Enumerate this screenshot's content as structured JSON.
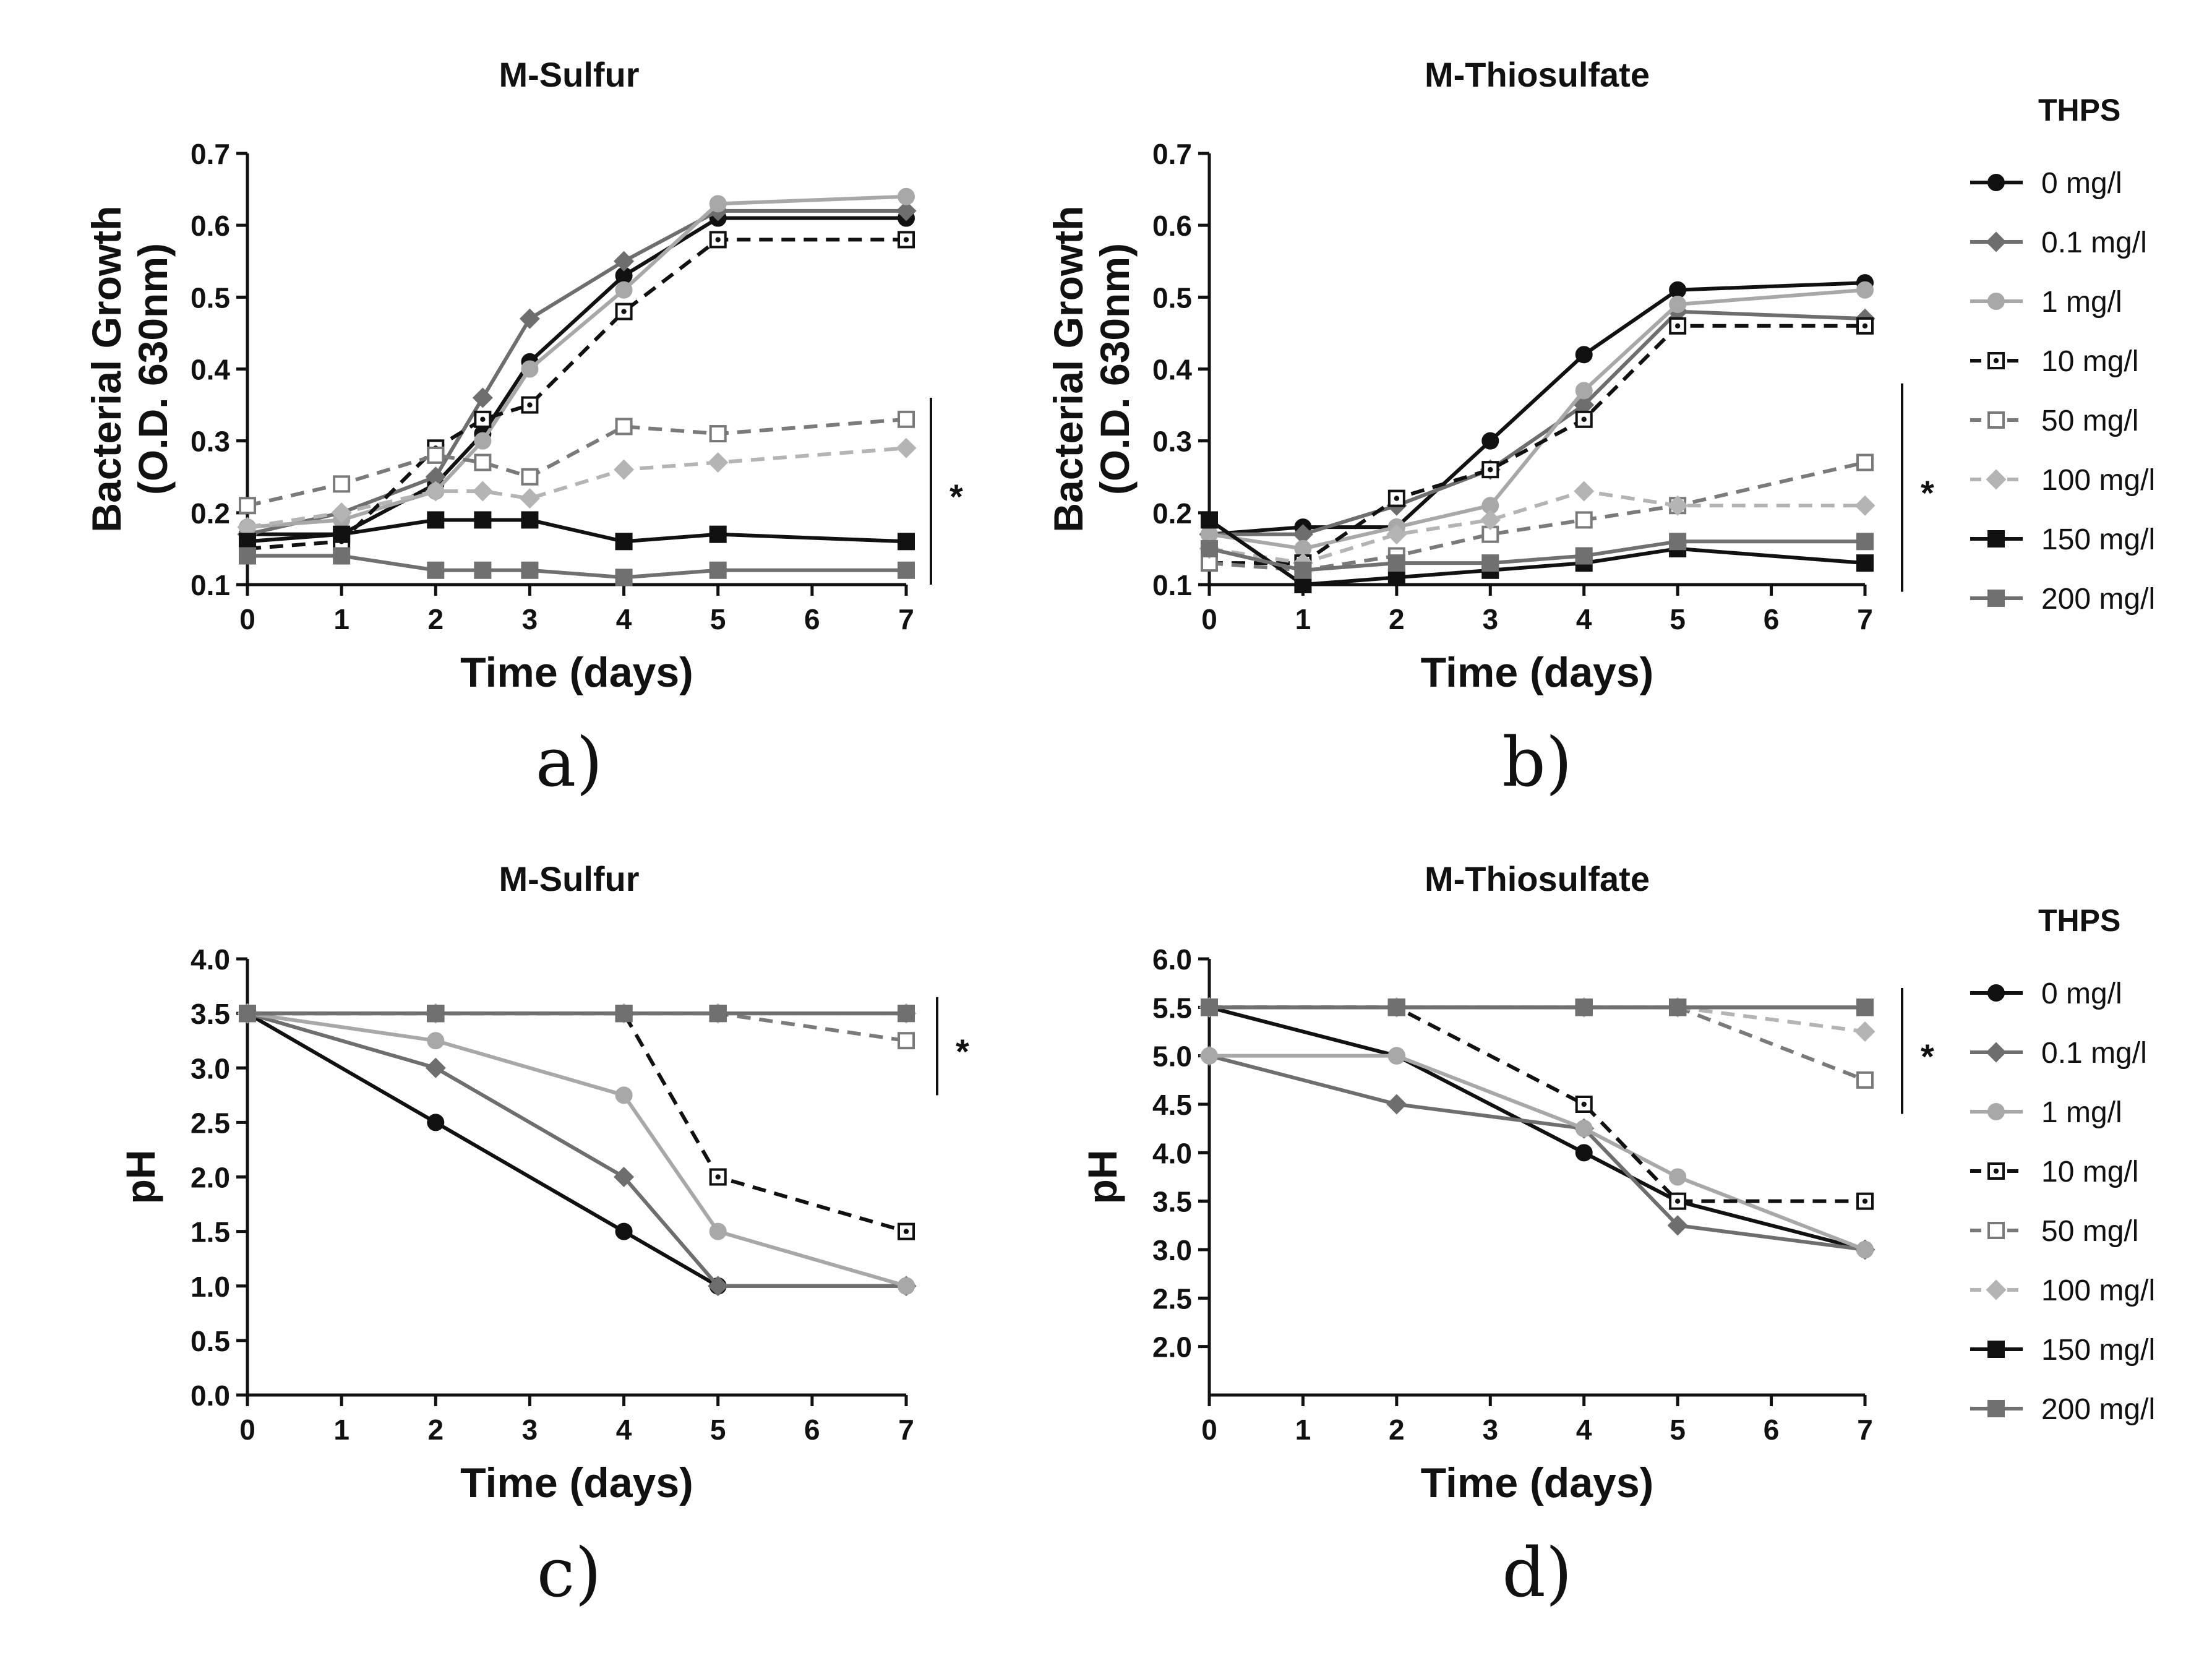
{
  "legend_title": "THPS",
  "series_styles": [
    {
      "name": "0 mg/l",
      "color": "#111111",
      "dash": "solid",
      "marker": "circle",
      "filled": true
    },
    {
      "name": "0.1 mg/l",
      "color": "#6e6e6e",
      "dash": "solid",
      "marker": "diamond",
      "filled": true
    },
    {
      "name": "1 mg/l",
      "color": "#a8a8a8",
      "dash": "solid",
      "marker": "circle",
      "filled": true
    },
    {
      "name": "10 mg/l",
      "color": "#111111",
      "dash": "dashed",
      "marker": "dot-square",
      "filled": false
    },
    {
      "name": "50 mg/l",
      "color": "#7a7a7a",
      "dash": "dashed",
      "marker": "open-square",
      "filled": false
    },
    {
      "name": "100 mg/l",
      "color": "#b4b4b4",
      "dash": "dashed",
      "marker": "diamond",
      "filled": true
    },
    {
      "name": "150 mg/l",
      "color": "#111111",
      "dash": "solid",
      "marker": "square",
      "filled": true
    },
    {
      "name": "200 mg/l",
      "color": "#707070",
      "dash": "solid",
      "marker": "square",
      "filled": true
    }
  ],
  "chart_data": [
    {
      "panel": "a)",
      "type": "line",
      "title": "M-Sulfur",
      "xlabel": "Time (days)",
      "ylabel": [
        "Bacterial Growth",
        "(O.D. 630nm)"
      ],
      "xlim": [
        0,
        7
      ],
      "ylim": [
        0.1,
        0.7
      ],
      "xticks": [
        "0",
        "1",
        "2",
        "3",
        "4",
        "5",
        "6",
        "7"
      ],
      "yticks": [
        "0.1",
        "0.2",
        "0.3",
        "0.4",
        "0.5",
        "0.6",
        "0.7"
      ],
      "significance": "*",
      "significance_range": [
        0.1,
        0.36
      ],
      "x": [
        0,
        1,
        2,
        2.5,
        3,
        4,
        5,
        7
      ],
      "series": [
        {
          "name": "0 mg/l",
          "values": [
            0.17,
            0.17,
            0.24,
            0.31,
            0.41,
            0.53,
            0.61,
            0.61
          ]
        },
        {
          "name": "0.1 mg/l",
          "values": [
            0.17,
            0.2,
            0.25,
            0.36,
            0.47,
            0.55,
            0.62,
            0.62
          ]
        },
        {
          "name": "1 mg/l",
          "values": [
            0.18,
            0.19,
            0.23,
            0.3,
            0.4,
            0.51,
            0.63,
            0.64
          ]
        },
        {
          "name": "10 mg/l",
          "values": [
            0.15,
            0.16,
            0.29,
            0.33,
            0.35,
            0.48,
            0.58,
            0.58
          ]
        },
        {
          "name": "50 mg/l",
          "values": [
            0.21,
            0.24,
            0.28,
            0.27,
            0.25,
            0.32,
            0.31,
            0.33
          ]
        },
        {
          "name": "100 mg/l",
          "values": [
            0.18,
            0.2,
            0.23,
            0.23,
            0.22,
            0.26,
            0.27,
            0.29
          ]
        },
        {
          "name": "150 mg/l",
          "values": [
            0.16,
            0.17,
            0.19,
            0.19,
            0.19,
            0.16,
            0.17,
            0.16
          ]
        },
        {
          "name": "200 mg/l",
          "values": [
            0.14,
            0.14,
            0.12,
            0.12,
            0.12,
            0.11,
            0.12,
            0.12
          ]
        }
      ]
    },
    {
      "panel": "b)",
      "type": "line",
      "title": "M-Thiosulfate",
      "xlabel": "Time (days)",
      "ylabel": [
        "Bacterial Growth",
        "(O.D. 630nm)"
      ],
      "xlim": [
        0,
        7
      ],
      "ylim": [
        0.1,
        0.7
      ],
      "xticks": [
        "0",
        "1",
        "2",
        "3",
        "4",
        "5",
        "6",
        "7"
      ],
      "yticks": [
        "0.1",
        "0.2",
        "0.3",
        "0.4",
        "0.5",
        "0.6",
        "0.7"
      ],
      "significance": "*",
      "significance_range": [
        0.09,
        0.38
      ],
      "x": [
        0,
        1,
        2,
        3,
        4,
        5,
        7
      ],
      "series": [
        {
          "name": "0 mg/l",
          "values": [
            0.17,
            0.18,
            0.18,
            0.3,
            0.42,
            0.51,
            0.52
          ]
        },
        {
          "name": "0.1 mg/l",
          "values": [
            0.17,
            0.17,
            0.21,
            0.26,
            0.35,
            0.48,
            0.47
          ]
        },
        {
          "name": "1 mg/l",
          "values": [
            0.17,
            0.15,
            0.18,
            0.21,
            0.37,
            0.49,
            0.51
          ]
        },
        {
          "name": "10 mg/l",
          "values": [
            0.13,
            0.13,
            0.22,
            0.26,
            0.33,
            0.46,
            0.46
          ]
        },
        {
          "name": "50 mg/l",
          "values": [
            0.13,
            0.12,
            0.14,
            0.17,
            0.19,
            0.21,
            0.27
          ]
        },
        {
          "name": "100 mg/l",
          "values": [
            0.15,
            0.13,
            0.17,
            0.19,
            0.23,
            0.21,
            0.21
          ]
        },
        {
          "name": "150 mg/l",
          "values": [
            0.19,
            0.1,
            0.11,
            0.12,
            0.13,
            0.15,
            0.13
          ]
        },
        {
          "name": "200 mg/l",
          "values": [
            0.15,
            0.12,
            0.13,
            0.13,
            0.14,
            0.16,
            0.16
          ]
        }
      ]
    },
    {
      "panel": "c)",
      "type": "line",
      "title": "M-Sulfur",
      "xlabel": "Time (days)",
      "ylabel": [
        "pH"
      ],
      "xlim": [
        0,
        7
      ],
      "ylim": [
        0.0,
        4.0
      ],
      "xticks": [
        "0",
        "1",
        "2",
        "3",
        "4",
        "5",
        "6",
        "7"
      ],
      "yticks": [
        "0.0",
        "0.5",
        "1.0",
        "1.5",
        "2.0",
        "2.5",
        "3.0",
        "3.5",
        "4.0"
      ],
      "significance": "*",
      "significance_range": [
        2.75,
        3.65
      ],
      "x": [
        0,
        2,
        4,
        5,
        7
      ],
      "series": [
        {
          "name": "0 mg/l",
          "values": [
            3.5,
            2.5,
            1.5,
            1.0,
            1.0
          ]
        },
        {
          "name": "0.1 mg/l",
          "values": [
            3.5,
            3.0,
            2.0,
            1.0,
            1.0
          ]
        },
        {
          "name": "1 mg/l",
          "values": [
            3.5,
            3.25,
            2.75,
            1.5,
            1.0
          ]
        },
        {
          "name": "10 mg/l",
          "values": [
            3.5,
            3.5,
            3.5,
            2.0,
            1.5
          ]
        },
        {
          "name": "50 mg/l",
          "values": [
            3.5,
            3.5,
            3.5,
            3.5,
            3.25
          ]
        },
        {
          "name": "100 mg/l",
          "values": [
            3.5,
            3.5,
            3.5,
            3.5,
            3.5
          ]
        },
        {
          "name": "150 mg/l",
          "values": [
            3.5,
            3.5,
            3.5,
            3.5,
            3.5
          ]
        },
        {
          "name": "200 mg/l",
          "values": [
            3.5,
            3.5,
            3.5,
            3.5,
            3.5
          ]
        }
      ]
    },
    {
      "panel": "d)",
      "type": "line",
      "title": "M-Thiosulfate",
      "xlabel": "Time (days)",
      "ylabel": [
        "pH"
      ],
      "xlim": [
        0,
        7
      ],
      "ylim": [
        1.5,
        6.0
      ],
      "xticks": [
        "0",
        "1",
        "2",
        "3",
        "4",
        "5",
        "6",
        "7"
      ],
      "yticks": [
        "2.0",
        "2.5",
        "3.0",
        "3.5",
        "4.0",
        "4.5",
        "5.0",
        "5.5",
        "6.0"
      ],
      "significance": "*",
      "significance_range": [
        4.4,
        5.7
      ],
      "x": [
        0,
        2,
        4,
        5,
        7
      ],
      "series": [
        {
          "name": "0 mg/l",
          "values": [
            5.5,
            5.0,
            4.0,
            3.5,
            3.0
          ]
        },
        {
          "name": "0.1 mg/l",
          "values": [
            5.0,
            4.5,
            4.25,
            3.25,
            3.0
          ]
        },
        {
          "name": "1 mg/l",
          "values": [
            5.0,
            5.0,
            4.25,
            3.75,
            3.0
          ]
        },
        {
          "name": "10 mg/l",
          "values": [
            5.5,
            5.5,
            4.5,
            3.5,
            3.5
          ]
        },
        {
          "name": "50 mg/l",
          "values": [
            5.5,
            5.5,
            5.5,
            5.5,
            4.75
          ]
        },
        {
          "name": "100 mg/l",
          "values": [
            5.5,
            5.5,
            5.5,
            5.5,
            5.25
          ]
        },
        {
          "name": "150 mg/l",
          "values": [
            5.5,
            5.5,
            5.5,
            5.5,
            5.5
          ]
        },
        {
          "name": "200 mg/l",
          "values": [
            5.5,
            5.5,
            5.5,
            5.5,
            5.5
          ]
        }
      ]
    }
  ]
}
